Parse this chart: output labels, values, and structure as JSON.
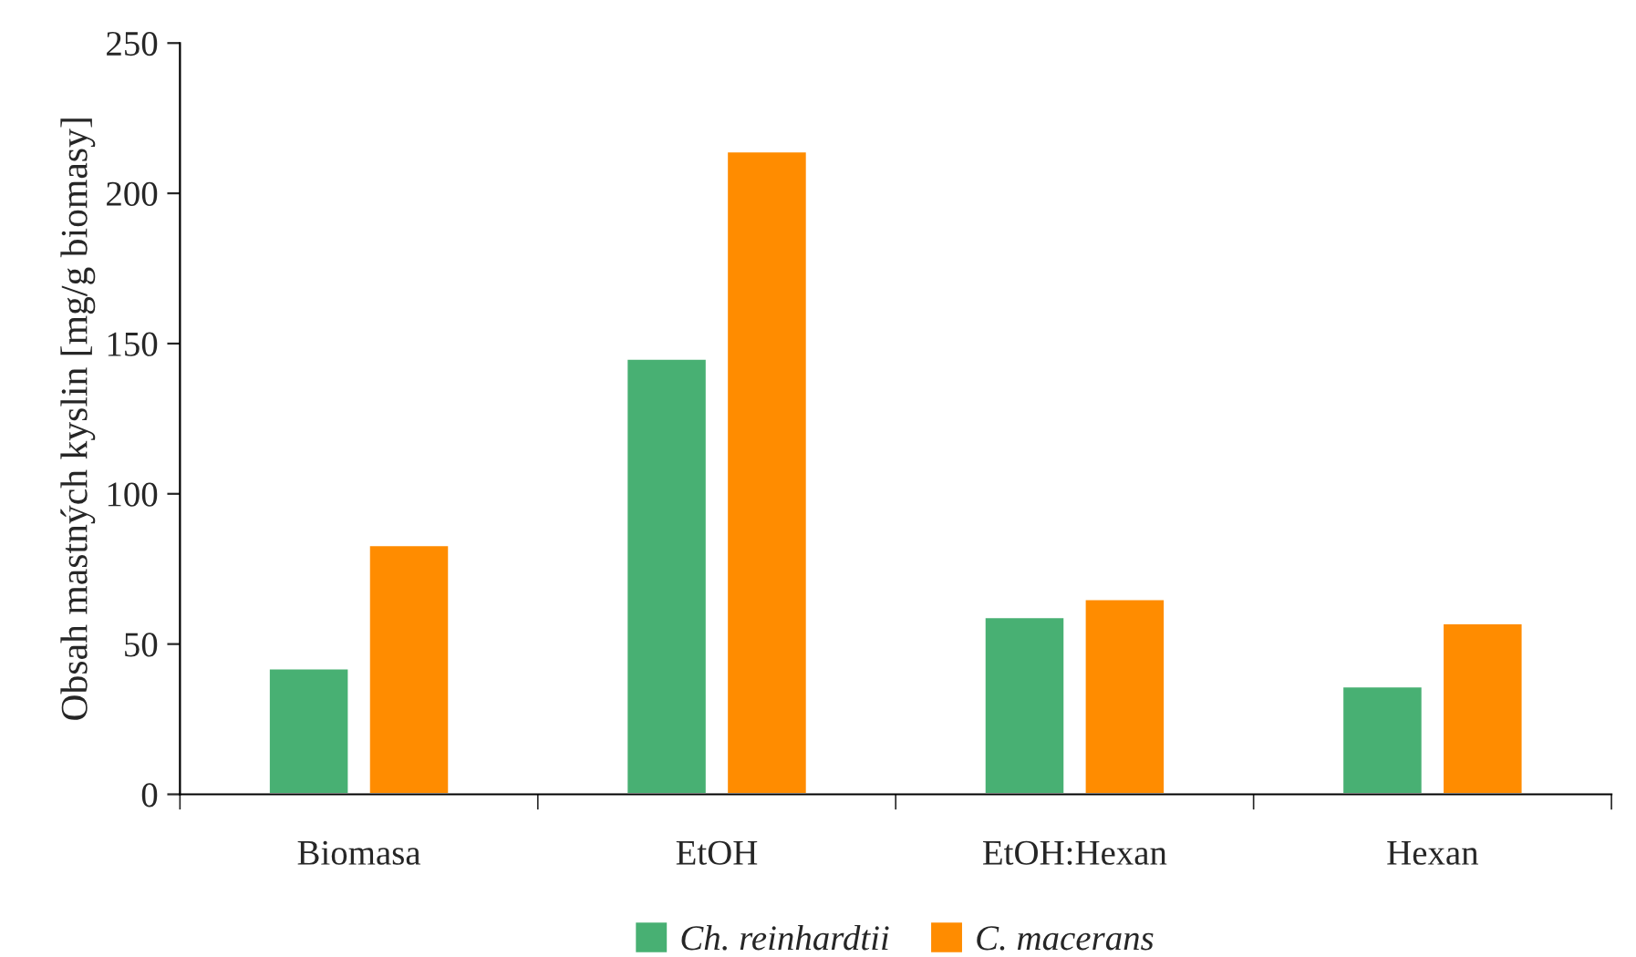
{
  "chart_data": {
    "type": "bar",
    "ylabel": "Obsah mastných kyslin [mg/g biomasy]",
    "categories": [
      "Biomasa",
      "EtOH",
      "EtOH:Hexan",
      "Hexan"
    ],
    "series": [
      {
        "name": "Ch. reinhardtii",
        "color": "#48b073",
        "values": [
          42,
          145,
          59,
          36
        ]
      },
      {
        "name": "C. macerans",
        "color": "#ff8c00",
        "values": [
          83,
          214,
          65,
          57
        ]
      }
    ],
    "ylim": [
      0,
      250
    ],
    "yticks": [
      0,
      50,
      100,
      150,
      200,
      250
    ],
    "grid": false,
    "legend": "bottom"
  }
}
